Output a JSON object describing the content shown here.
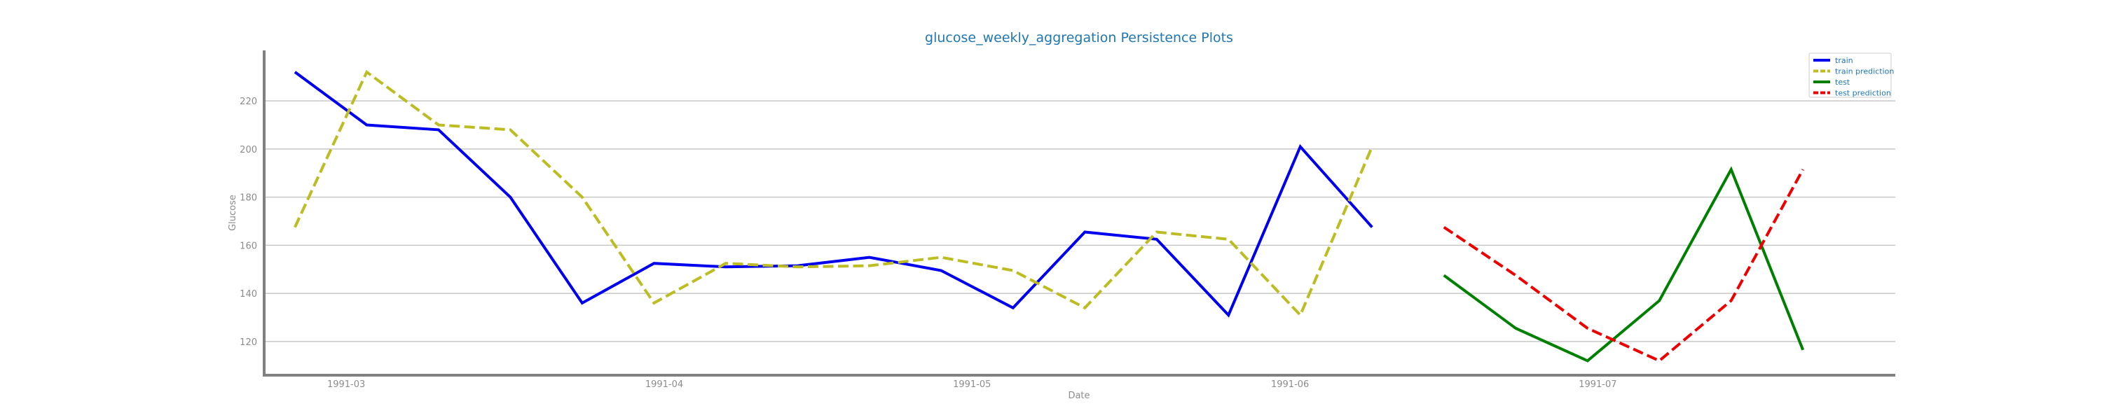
{
  "chart_data": {
    "type": "line",
    "title": "glucose_weekly_aggregation Persistence Plots",
    "xlabel": "Date",
    "ylabel": "Glucose",
    "xlim": [
      "1991-02-21",
      "1991-07-30"
    ],
    "ylim": [
      106,
      241
    ],
    "x_ticks": [
      "1991-03",
      "1991-04",
      "1991-05",
      "1991-06",
      "1991-07"
    ],
    "x_tick_dates": [
      "1991-03-01",
      "1991-04-01",
      "1991-05-01",
      "1991-06-01",
      "1991-07-01"
    ],
    "y_ticks": [
      120,
      140,
      160,
      180,
      200,
      220
    ],
    "grid": "horizontal",
    "legend_position": "top-right",
    "series": [
      {
        "name": "train",
        "color": "#0000ee",
        "style": "solid",
        "x": [
          "1991-02-24",
          "1991-03-03",
          "1991-03-10",
          "1991-03-17",
          "1991-03-24",
          "1991-03-31",
          "1991-04-07",
          "1991-04-14",
          "1991-04-21",
          "1991-04-28",
          "1991-05-05",
          "1991-05-12",
          "1991-05-19",
          "1991-05-26",
          "1991-06-02",
          "1991-06-09"
        ],
        "y": [
          232,
          210,
          208,
          180,
          136,
          152.5,
          151,
          151.5,
          155,
          149.5,
          134,
          165.5,
          162.5,
          131,
          201,
          167.5
        ]
      },
      {
        "name": "train prediction",
        "color": "#bcbd22",
        "style": "dashed",
        "x": [
          "1991-02-24",
          "1991-03-03",
          "1991-03-10",
          "1991-03-17",
          "1991-03-24",
          "1991-03-31",
          "1991-04-07",
          "1991-04-14",
          "1991-04-21",
          "1991-04-28",
          "1991-05-05",
          "1991-05-12",
          "1991-05-19",
          "1991-05-26",
          "1991-06-02",
          "1991-06-09"
        ],
        "y": [
          167.5,
          232,
          210,
          208,
          180,
          136,
          152.5,
          151,
          151.5,
          155,
          149.5,
          134,
          165.5,
          162.5,
          131,
          201
        ]
      },
      {
        "name": "test",
        "color": "#008000",
        "style": "solid",
        "x": [
          "1991-06-16",
          "1991-06-23",
          "1991-06-30",
          "1991-07-07",
          "1991-07-14",
          "1991-07-21"
        ],
        "y": [
          147.5,
          125.5,
          112,
          137,
          191.5,
          116.5
        ]
      },
      {
        "name": "test prediction",
        "color": "#ee0000",
        "style": "dashed",
        "x": [
          "1991-06-16",
          "1991-06-23",
          "1991-06-30",
          "1991-07-07",
          "1991-07-14",
          "1991-07-21"
        ],
        "y": [
          167.5,
          147.5,
          125.5,
          112,
          137,
          191.5
        ]
      }
    ]
  }
}
